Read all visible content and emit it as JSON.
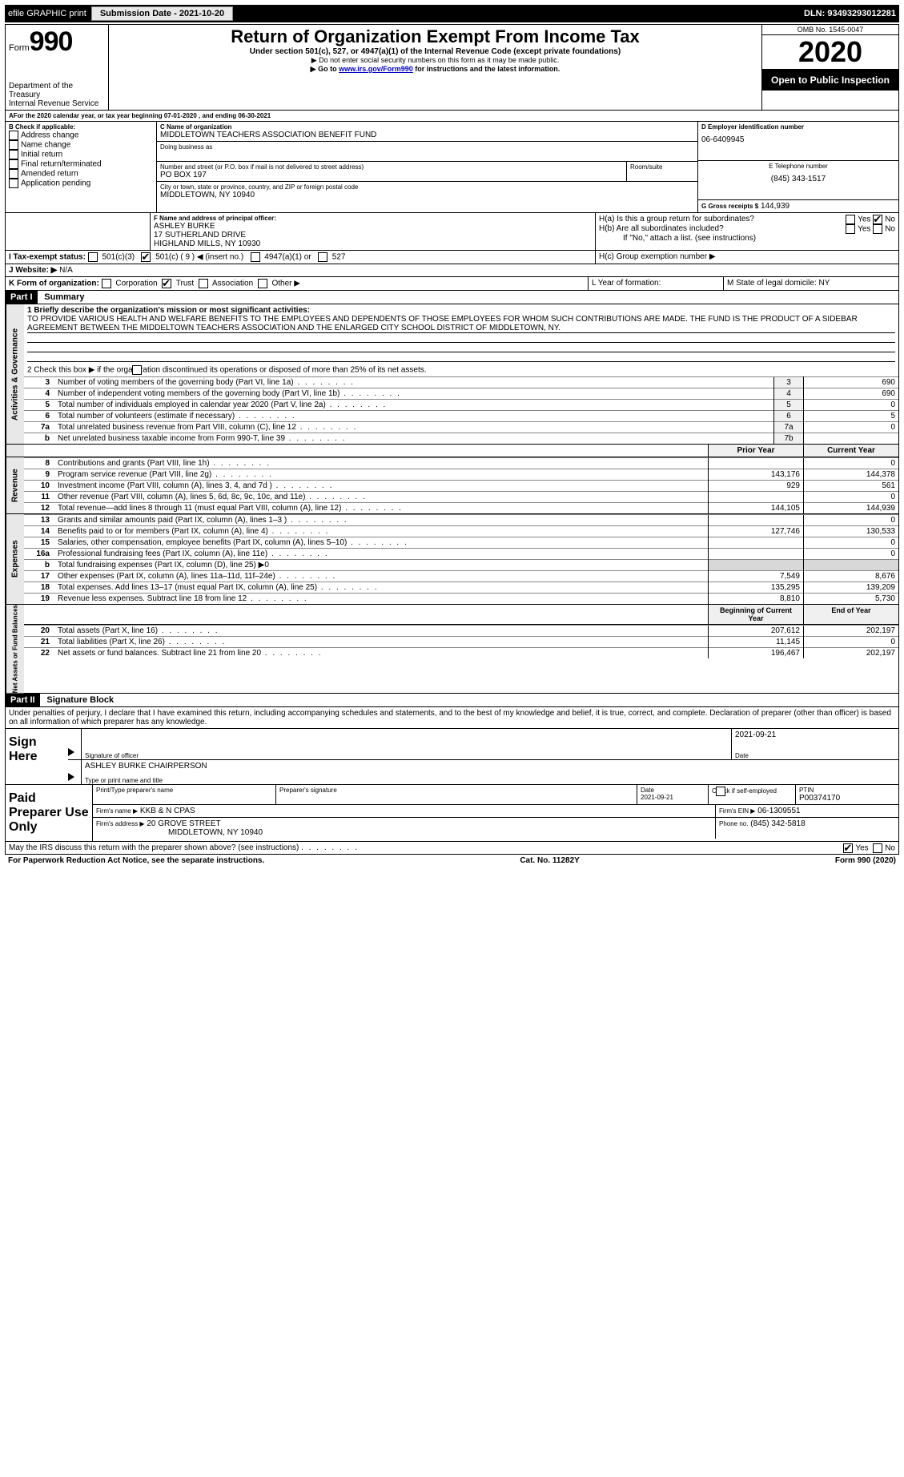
{
  "topbar": {
    "efile": "efile GRAPHIC print",
    "submission_label": "Submission Date - 2021-10-20",
    "dln_label": "DLN: 93493293012281"
  },
  "header": {
    "form_word": "Form",
    "form_number": "990",
    "dept": "Department of the Treasury",
    "irs": "Internal Revenue Service",
    "title": "Return of Organization Exempt From Income Tax",
    "subtitle": "Under section 501(c), 527, or 4947(a)(1) of the Internal Revenue Code (except private foundations)",
    "note1": "▶ Do not enter social security numbers on this form as it may be made public.",
    "note2_pre": "▶ Go to ",
    "note2_link": "www.irs.gov/Form990",
    "note2_post": " for instructions and the latest information.",
    "omb": "OMB No. 1545-0047",
    "year": "2020",
    "open": "Open to Public Inspection"
  },
  "lineA": "For the 2020 calendar year, or tax year beginning 07-01-2020    , and ending 06-30-2021",
  "B": {
    "label": "B Check if applicable:",
    "items": [
      "Address change",
      "Name change",
      "Initial return",
      "Final return/terminated",
      "Amended return",
      "Application pending"
    ]
  },
  "C": {
    "name_label": "C Name of organization",
    "org_name": "MIDDLETOWN TEACHERS ASSOCIATION BENEFIT FUND",
    "dba_label": "Doing business as",
    "addr_label": "Number and street (or P.O. box if mail is not delivered to street address)",
    "room_label": "Room/suite",
    "po": "PO BOX 197",
    "city_label": "City or town, state or province, country, and ZIP or foreign postal code",
    "city": "MIDDLETOWN, NY  10940"
  },
  "D": {
    "label": "D Employer identification number",
    "value": "06-6409945"
  },
  "E": {
    "label": "E Telephone number",
    "value": "(845) 343-1517"
  },
  "G": {
    "label": "G Gross receipts $",
    "value": "144,939"
  },
  "F": {
    "label": "F  Name and address of principal officer:",
    "name": "ASHLEY BURKE",
    "addr1": "17 SUTHERLAND DRIVE",
    "addr2": "HIGHLAND MILLS, NY  10930"
  },
  "H": {
    "a": "H(a)  Is this a group return for subordinates?",
    "b": "H(b)  Are all subordinates included?",
    "b_note": "If \"No,\" attach a list. (see instructions)",
    "c": "H(c)  Group exemption number ▶",
    "yes": "Yes",
    "no": "No"
  },
  "I": {
    "label": "I    Tax-exempt status:",
    "opts": [
      "501(c)(3)",
      "501(c) ( 9 ) ◀ (insert no.)",
      "4947(a)(1) or",
      "527"
    ]
  },
  "J": {
    "label": "J   Website: ▶",
    "value": "N/A"
  },
  "K": {
    "label": "K Form of organization:",
    "opts": [
      "Corporation",
      "Trust",
      "Association",
      "Other ▶"
    ]
  },
  "L": {
    "label": "L Year of formation:"
  },
  "M": {
    "label": "M State of legal domicile: NY"
  },
  "partI": {
    "header": "Part I",
    "title": "Summary",
    "q1": "1  Briefly describe the organization's mission or most significant activities:",
    "mission": "TO PROVIDE VARIOUS HEALTH AND WELFARE BENEFITS TO THE EMPLOYEES AND DEPENDENTS OF THOSE EMPLOYEES FOR WHOM SUCH CONTRIBUTIONS ARE MADE. THE FUND IS THE PRODUCT OF A SIDEBAR AGREEMENT BETWEEN THE MIDDELTOWN TEACHERS ASSOCIATION AND THE ENLARGED CITY SCHOOL DISTRICT OF MIDDLETOWN, NY.",
    "q2": "2   Check this box ▶      if the organization discontinued its operations or disposed of more than 25% of its net assets.",
    "tabs": {
      "gov": "Activities & Governance",
      "rev": "Revenue",
      "exp": "Expenses",
      "net": "Net Assets or Fund Balances"
    },
    "gov_rows": [
      {
        "n": "3",
        "label": "Number of voting members of the governing body (Part VI, line 1a)",
        "box": "3",
        "val": "690"
      },
      {
        "n": "4",
        "label": "Number of independent voting members of the governing body (Part VI, line 1b)",
        "box": "4",
        "val": "690"
      },
      {
        "n": "5",
        "label": "Total number of individuals employed in calendar year 2020 (Part V, line 2a)",
        "box": "5",
        "val": "0"
      },
      {
        "n": "6",
        "label": "Total number of volunteers (estimate if necessary)",
        "box": "6",
        "val": "5"
      },
      {
        "n": "7a",
        "label": "Total unrelated business revenue from Part VIII, column (C), line 12",
        "box": "7a",
        "val": "0"
      },
      {
        "n": "b",
        "label": "Net unrelated business taxable income from Form 990-T, line 39",
        "box": "7b",
        "val": ""
      }
    ],
    "col_headers": {
      "prior": "Prior Year",
      "current": "Current Year"
    },
    "rev_rows": [
      {
        "n": "8",
        "label": "Contributions and grants (Part VIII, line 1h)",
        "prior": "",
        "cur": "0"
      },
      {
        "n": "9",
        "label": "Program service revenue (Part VIII, line 2g)",
        "prior": "143,176",
        "cur": "144,378"
      },
      {
        "n": "10",
        "label": "Investment income (Part VIII, column (A), lines 3, 4, and 7d )",
        "prior": "929",
        "cur": "561"
      },
      {
        "n": "11",
        "label": "Other revenue (Part VIII, column (A), lines 5, 6d, 8c, 9c, 10c, and 11e)",
        "prior": "",
        "cur": "0"
      },
      {
        "n": "12",
        "label": "Total revenue—add lines 8 through 11 (must equal Part VIII, column (A), line 12)",
        "prior": "144,105",
        "cur": "144,939"
      }
    ],
    "exp_rows": [
      {
        "n": "13",
        "label": "Grants and similar amounts paid (Part IX, column (A), lines 1–3 )",
        "prior": "",
        "cur": "0"
      },
      {
        "n": "14",
        "label": "Benefits paid to or for members (Part IX, column (A), line 4)",
        "prior": "127,746",
        "cur": "130,533"
      },
      {
        "n": "15",
        "label": "Salaries, other compensation, employee benefits (Part IX, column (A), lines 5–10)",
        "prior": "",
        "cur": "0"
      },
      {
        "n": "16a",
        "label": "Professional fundraising fees (Part IX, column (A), line 11e)",
        "prior": "",
        "cur": "0"
      },
      {
        "n": "b",
        "label": "Total fundraising expenses (Part IX, column (D), line 25) ▶0",
        "prior": null,
        "cur": null
      },
      {
        "n": "17",
        "label": "Other expenses (Part IX, column (A), lines 11a–11d, 11f–24e)",
        "prior": "7,549",
        "cur": "8,676"
      },
      {
        "n": "18",
        "label": "Total expenses. Add lines 13–17 (must equal Part IX, column (A), line 25)",
        "prior": "135,295",
        "cur": "139,209"
      },
      {
        "n": "19",
        "label": "Revenue less expenses. Subtract line 18 from line 12",
        "prior": "8,810",
        "cur": "5,730"
      }
    ],
    "net_headers": {
      "beg": "Beginning of Current Year",
      "end": "End of Year"
    },
    "net_rows": [
      {
        "n": "20",
        "label": "Total assets (Part X, line 16)",
        "prior": "207,612",
        "cur": "202,197"
      },
      {
        "n": "21",
        "label": "Total liabilities (Part X, line 26)",
        "prior": "11,145",
        "cur": "0"
      },
      {
        "n": "22",
        "label": "Net assets or fund balances. Subtract line 21 from line 20",
        "prior": "196,467",
        "cur": "202,197"
      }
    ]
  },
  "partII": {
    "header": "Part II",
    "title": "Signature Block",
    "penalty": "Under penalties of perjury, I declare that I have examined this return, including accompanying schedules and statements, and to the best of my knowledge and belief, it is true, correct, and complete. Declaration of preparer (other than officer) is based on all information of which preparer has any knowledge.",
    "sign_here": "Sign Here",
    "sig_officer": "Signature of officer",
    "sig_date": "2021-09-21",
    "date_label": "Date",
    "officer_name": "ASHLEY BURKE  CHAIRPERSON",
    "type_name": "Type or print name and title",
    "paid": "Paid Preparer Use Only",
    "prep_cols": {
      "print": "Print/Type preparer's name",
      "sig": "Preparer's signature",
      "date": "Date",
      "date_val": "2021-09-21",
      "check": "Check        if self-employed",
      "ptin": "PTIN",
      "ptin_val": "P00374170"
    },
    "firm_name_label": "Firm's name    ▶",
    "firm_name": "KKB & N CPAS",
    "firm_ein_label": "Firm's EIN ▶",
    "firm_ein": "06-1309551",
    "firm_addr_label": "Firm's address ▶",
    "firm_addr1": "20 GROVE STREET",
    "firm_addr2": "MIDDLETOWN, NY  10940",
    "phone_label": "Phone no.",
    "phone": "(845) 342-5818",
    "discuss": "May the IRS discuss this return with the preparer shown above? (see instructions)"
  },
  "footer": {
    "pra": "For Paperwork Reduction Act Notice, see the separate instructions.",
    "cat": "Cat. No. 11282Y",
    "form": "Form 990 (2020)"
  }
}
